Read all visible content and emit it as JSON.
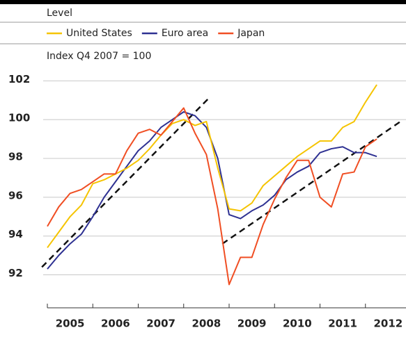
{
  "chart_data": {
    "type": "line",
    "header": "Level",
    "subtitle": "Index Q4 2007 = 100",
    "x": [
      2005,
      2005.25,
      2005.5,
      2005.75,
      2006,
      2006.25,
      2006.5,
      2006.75,
      2007,
      2007.25,
      2007.5,
      2007.75,
      2008,
      2008.25,
      2008.5,
      2008.75,
      2009,
      2009.25,
      2009.5,
      2009.75,
      2010,
      2010.25,
      2010.5,
      2010.75,
      2011,
      2011.25,
      2011.5,
      2011.75,
      2012,
      2012.25
    ],
    "series": [
      {
        "name": "United States",
        "color": "#f5c400",
        "values": [
          93.4,
          94.2,
          95.0,
          95.6,
          96.7,
          96.9,
          97.2,
          97.5,
          97.9,
          98.5,
          99.2,
          99.8,
          100.0,
          99.7,
          99.9,
          97.5,
          95.4,
          95.3,
          95.7,
          96.6,
          97.1,
          97.6,
          98.1,
          98.5,
          98.9,
          98.9,
          99.6,
          99.9,
          100.9,
          101.8
        ]
      },
      {
        "name": "Euro area",
        "color": "#2e3192",
        "values": [
          92.3,
          93.0,
          93.6,
          94.1,
          95.0,
          96.0,
          96.8,
          97.6,
          98.4,
          98.9,
          99.6,
          100.0,
          100.4,
          100.2,
          99.6,
          98.0,
          95.1,
          94.9,
          95.3,
          95.6,
          96.1,
          96.9,
          97.3,
          97.6,
          98.3,
          98.5,
          98.6,
          98.3,
          98.3,
          98.1
        ]
      },
      {
        "name": "Japan",
        "color": "#f04e23",
        "values": [
          94.5,
          95.5,
          96.2,
          96.4,
          96.8,
          97.2,
          97.2,
          98.4,
          99.3,
          99.5,
          99.2,
          99.9,
          100.6,
          99.3,
          98.2,
          95.4,
          91.5,
          92.9,
          92.9,
          94.6,
          95.9,
          97.0,
          97.9,
          97.9,
          96.0,
          95.5,
          97.2,
          97.3,
          98.6,
          99.0
        ]
      }
    ],
    "trend_lines": [
      {
        "color": "#111111",
        "x": [
          2004.88,
          2008.55
        ],
        "values": [
          92.4,
          101.1
        ]
      },
      {
        "color": "#111111",
        "x": [
          2008.85,
          2012.77
        ],
        "values": [
          93.6,
          99.9
        ]
      }
    ],
    "xlim": [
      2005,
      2013
    ],
    "xticks": [
      2005,
      2006,
      2007,
      2008,
      2009,
      2010,
      2011,
      2012
    ],
    "xtick_labels": [
      "2005",
      "2006",
      "2007",
      "2008",
      "2009",
      "2010",
      "2011",
      "2012"
    ],
    "ylim": [
      90.3,
      102.8
    ],
    "yticks": [
      92,
      94,
      96,
      98,
      100,
      102
    ],
    "grid": true
  }
}
